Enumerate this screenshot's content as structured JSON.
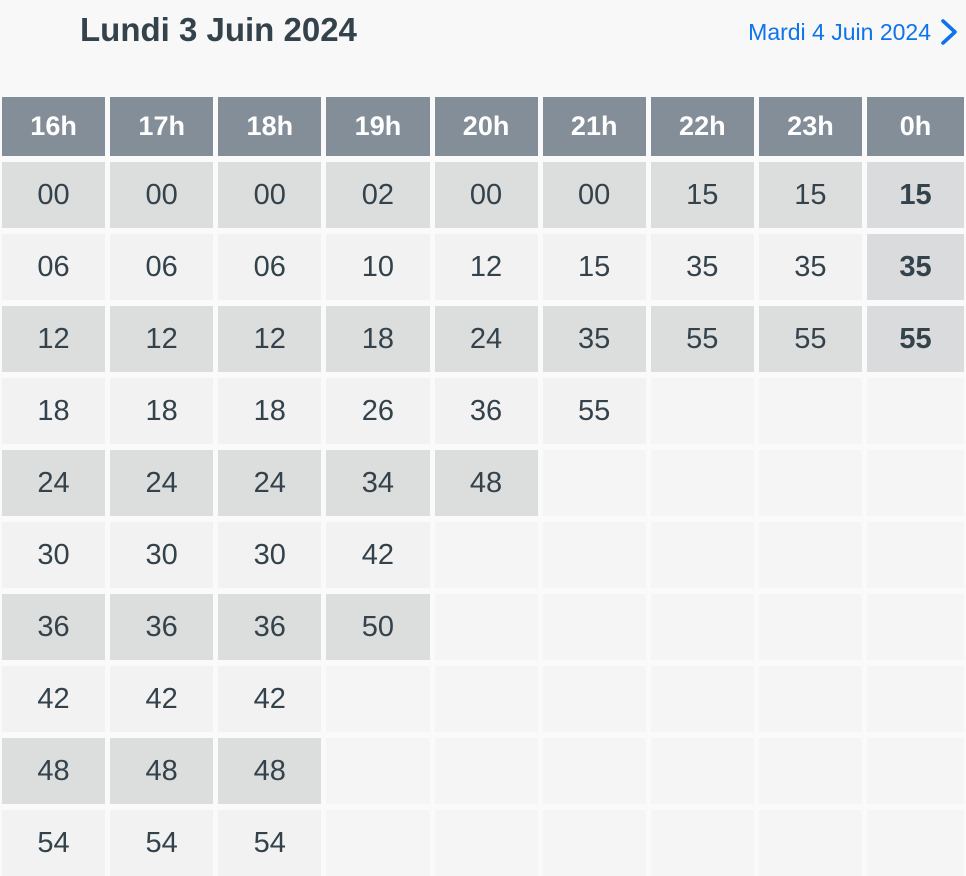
{
  "header": {
    "title": "Lundi 3 Juin 2024",
    "next_day_link": {
      "label": "Mardi 4 Juin 2024",
      "icon": "chevron-right"
    }
  },
  "timetable": {
    "hour_headers": [
      "16h",
      "17h",
      "18h",
      "19h",
      "20h",
      "21h",
      "22h",
      "23h",
      "0h"
    ],
    "minute_rows": [
      [
        "00",
        "00",
        "00",
        "02",
        "00",
        "00",
        "15",
        "15",
        "15"
      ],
      [
        "06",
        "06",
        "06",
        "10",
        "12",
        "15",
        "35",
        "35",
        "35"
      ],
      [
        "12",
        "12",
        "12",
        "18",
        "24",
        "35",
        "55",
        "55",
        "55"
      ],
      [
        "18",
        "18",
        "18",
        "26",
        "36",
        "55",
        "",
        "",
        ""
      ],
      [
        "24",
        "24",
        "24",
        "34",
        "48",
        "",
        "",
        "",
        ""
      ],
      [
        "30",
        "30",
        "30",
        "42",
        "",
        "",
        "",
        "",
        ""
      ],
      [
        "36",
        "36",
        "36",
        "50",
        "",
        "",
        "",
        "",
        ""
      ],
      [
        "42",
        "42",
        "42",
        "",
        "",
        "",
        "",
        "",
        ""
      ],
      [
        "48",
        "48",
        "48",
        "",
        "",
        "",
        "",
        "",
        ""
      ],
      [
        "54",
        "54",
        "54",
        "",
        "",
        "",
        "",
        "",
        ""
      ]
    ],
    "next_day_column": 8,
    "next_day_rows": [
      0,
      1,
      2
    ]
  },
  "colors": {
    "page-bg": "#f8f8f8",
    "grid-gap-bg": "#fafafa",
    "header-cell-bg": "#848e98",
    "header-cell-text": "#ffffff",
    "dark-cell-bg": "#dcdddd",
    "light-cell-bg": "#f2f2f2",
    "empty-cell-bg": "#f5f5f6",
    "next-day-cell-bg": "#dadbdc",
    "text-dark": "#34424c",
    "accent-blue": "#0f73ea"
  }
}
